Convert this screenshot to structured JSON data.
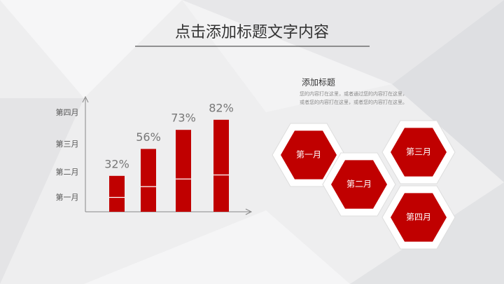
{
  "title": "点击添加标题文字内容",
  "chart_data": {
    "type": "bar",
    "categories": [
      null,
      null,
      null,
      null
    ],
    "values": [
      32,
      56,
      73,
      82
    ],
    "value_labels": [
      "32%",
      "56%",
      "73%",
      "82%"
    ],
    "color": "#c00000",
    "ylim": [
      0,
      100
    ],
    "ylabels": [
      "第一月",
      "第二月",
      "第三月",
      "第四月"
    ]
  },
  "side": {
    "heading": "添加标题",
    "body": "您的内容打在这里，或者通过您的内容打在这里，或者您的内容打在这里，或者您的内容打在这里。"
  },
  "hexagons": [
    "第一月",
    "第二月",
    "第三月",
    "第四月"
  ]
}
